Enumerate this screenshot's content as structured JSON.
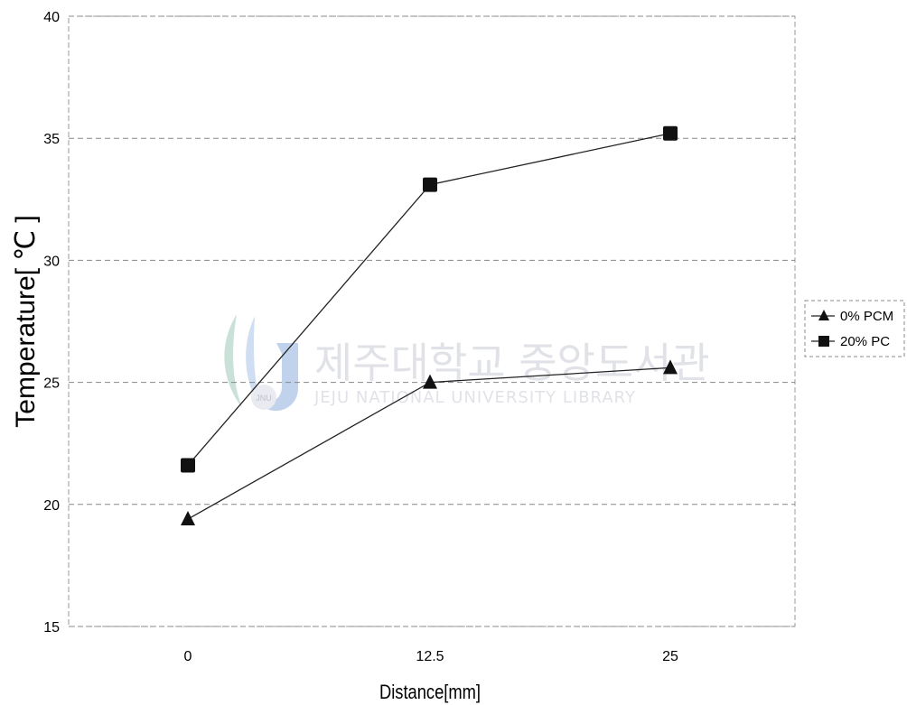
{
  "chart_data": {
    "type": "line",
    "categories": [
      "0",
      "12.5",
      "25"
    ],
    "series": [
      {
        "name": "0% PCM",
        "marker": "triangle",
        "values": [
          19.4,
          25.0,
          25.6
        ]
      },
      {
        "name": "20% PC",
        "marker": "square",
        "values": [
          21.6,
          33.1,
          35.2
        ]
      }
    ],
    "ylabel": "Temperature[ ℃ ]",
    "xlabel": "Distance[mm]",
    "ylim": [
      15,
      40
    ],
    "yticks": [
      "15",
      "20",
      "25",
      "30",
      "35",
      "40"
    ],
    "grid": true,
    "legend_position": "right"
  },
  "watermark": {
    "korean": "제주대학교 중앙도서관",
    "english": "JEJU NATIONAL UNIVERSITY LIBRARY",
    "emblem_text": "JNU"
  },
  "colors": {
    "series_line": "#222222",
    "marker": "#111111",
    "grid": "#888888",
    "watermark": "#c8ccd4"
  }
}
